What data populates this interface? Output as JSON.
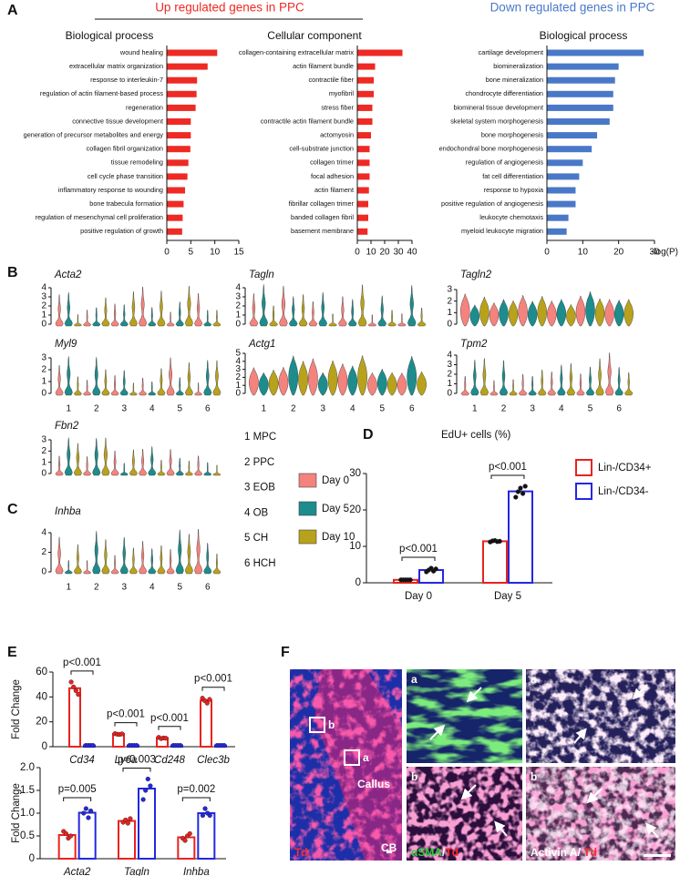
{
  "figure": {
    "panel_labels": [
      "A",
      "B",
      "C",
      "D",
      "E",
      "F"
    ],
    "up_heading": "Up regulated genes in PPC",
    "down_heading": "Down regulated genes in PPC"
  },
  "chart_data": [
    {
      "type": "hbar",
      "title": "Biological process",
      "color": "#ee2a24",
      "xlim": [
        0,
        15
      ],
      "xticks": [
        0,
        5,
        10,
        15
      ],
      "categories": [
        "wound healing",
        "extracellular matrix organization",
        "response to interleukin-7",
        "regulation of actin filament-based process",
        "regeneration",
        "connective tissue development",
        "generation of precursor metabolites and energy",
        "collagen fibril organization",
        "tissue remodeling",
        "cell cycle phase transition",
        "inflammatory response to wounding",
        "bone trabecula formation",
        "regulation of mesenchymal cell proliferation",
        "positive regulation of growth"
      ],
      "values": [
        10.5,
        8.5,
        6.3,
        6.2,
        6.0,
        5.0,
        5.0,
        4.9,
        4.5,
        4.3,
        3.8,
        3.5,
        3.3,
        3.2
      ]
    },
    {
      "type": "hbar",
      "title": "Cellular component",
      "color": "#ee2a24",
      "xlim": [
        0,
        40
      ],
      "xticks": [
        0,
        10,
        20,
        30,
        40
      ],
      "categories": [
        "collagen-containing extracellular matrix",
        "actin filament bundle",
        "contractile fiber",
        "myofibril",
        "stress fiber",
        "contractile actin filament bundle",
        "actomyosin",
        "cell-substrate junction",
        "collagen trimer",
        "focal adhesion",
        "actin filament",
        "fibrillar collagen trimer",
        "banded collagen fibril",
        "basement membrane"
      ],
      "values": [
        33,
        13,
        12,
        12,
        11,
        11,
        10,
        9,
        9,
        9,
        8.5,
        8,
        8,
        7.5
      ]
    },
    {
      "type": "hbar",
      "title": "Biological process",
      "color": "#4a78c8",
      "xlim": [
        0,
        30
      ],
      "xticks": [
        0,
        10,
        20,
        30
      ],
      "xlabel": "-log(P)",
      "categories": [
        "cartilage development",
        "biomineralization",
        "bone mineralization",
        "chondrocyte differentiation",
        "biomineral tissue development",
        "skeletal system morphogenesis",
        "bone morphogenesis",
        "endochondral bone morphogenesis",
        "regulation of angiogenesis",
        "fat cell differentiation",
        "response to hypoxia",
        "positive regulation of angiogenesis",
        "leukocyte chemotaxis",
        "myeloid leukocyte migration"
      ],
      "values": [
        27,
        20,
        19,
        18.5,
        18.5,
        17.5,
        14,
        12.5,
        10,
        9,
        8,
        8,
        6,
        5.5
      ]
    },
    {
      "type": "violin",
      "title": "Acta2",
      "ylim": [
        0,
        4
      ],
      "yticks": [
        0,
        1,
        2,
        3,
        4
      ]
    },
    {
      "type": "violin",
      "title": "Tagln",
      "ylim": [
        0,
        4
      ],
      "yticks": [
        0,
        1,
        2,
        3,
        4
      ]
    },
    {
      "type": "violin",
      "title": "Tagln2",
      "ylim": [
        0,
        3
      ],
      "yticks": [
        0,
        1,
        2,
        3
      ]
    },
    {
      "type": "violin",
      "title": "Myl9",
      "ylim": [
        0,
        3
      ],
      "yticks": [
        0,
        1,
        2,
        3
      ],
      "categories": [
        "1",
        "2",
        "3",
        "4",
        "5",
        "6"
      ]
    },
    {
      "type": "violin",
      "title": "Actg1",
      "ylim": [
        0,
        5
      ],
      "yticks": [
        0,
        1,
        2,
        3,
        4,
        5
      ],
      "categories": [
        "1",
        "2",
        "3",
        "4",
        "5",
        "6"
      ]
    },
    {
      "type": "violin",
      "title": "Tpm2",
      "ylim": [
        0,
        4
      ],
      "yticks": [
        0,
        1,
        2,
        3,
        4
      ],
      "categories": [
        "1",
        "2",
        "3",
        "4",
        "5",
        "6"
      ]
    },
    {
      "type": "violin",
      "title": "Fbn2",
      "ylim": [
        0,
        3
      ],
      "yticks": [
        0,
        1,
        2,
        3
      ]
    },
    {
      "type": "violin",
      "title": "Inhba",
      "ylim": [
        0,
        4
      ],
      "yticks": [
        0,
        2,
        4
      ],
      "categories": [
        "1",
        "2",
        "3",
        "4",
        "5",
        "6"
      ]
    },
    {
      "type": "bar",
      "title": "EdU+ cells (%)",
      "categories": [
        "Day 0",
        "Day 5"
      ],
      "ylim": [
        0,
        30
      ],
      "yticks": [
        0,
        10,
        20,
        30
      ],
      "legend": "right",
      "point_color": "#111111",
      "p_values": [
        "p<0.001",
        "p<0.001"
      ],
      "series": [
        {
          "name": "Lin-/CD34+",
          "color": "#e8231f",
          "values": [
            0.8,
            11.4
          ],
          "points": [
            [
              0.8,
              0.8,
              0.8,
              0.8,
              0.8
            ],
            [
              11.2,
              11.5,
              11.6,
              11.3,
              11.4
            ]
          ]
        },
        {
          "name": "Lin-/CD34-",
          "color": "#2327e0",
          "values": [
            3.5,
            25.1
          ],
          "points": [
            [
              3.0,
              3.5,
              4.0,
              3.2,
              3.8
            ],
            [
              23.5,
              25.0,
              26.0,
              24.5,
              26.5
            ]
          ]
        }
      ]
    },
    {
      "type": "bar",
      "ylabel": "Fold Change",
      "categories": [
        "Cd34",
        "Ly6a",
        "Cd248",
        "Clec3b"
      ],
      "ylim": [
        0,
        60
      ],
      "yticks": [
        0,
        20,
        40,
        60
      ],
      "p_values": [
        "p<0.001",
        "p<0.001",
        "p<0.001",
        "p<0.001"
      ],
      "series": [
        {
          "name": "Lin-/CD34+",
          "color": "#e8231f",
          "values": [
            47,
            10.2,
            7,
            37
          ],
          "points": [
            [
              52,
              48,
              45,
              42
            ],
            [
              10.5,
              10,
              9.8,
              10.3
            ],
            [
              7.5,
              6.5,
              7,
              6.8
            ],
            [
              39,
              37,
              35,
              38
            ]
          ]
        },
        {
          "name": "Lin-/CD34-",
          "color": "#2327e0",
          "values": [
            1,
            1,
            1,
            1
          ],
          "points": [
            [
              1,
              1,
              1,
              1
            ],
            [
              1,
              1,
              1,
              1
            ],
            [
              1,
              1,
              1,
              1
            ],
            [
              1,
              1,
              1,
              1
            ]
          ]
        }
      ]
    },
    {
      "type": "bar",
      "ylabel": "Fold Change",
      "categories": [
        "Acta2",
        "Tagln",
        "Inhba"
      ],
      "ylim": [
        0,
        2
      ],
      "yticks": [
        0,
        0.5,
        {
          "value": 1,
          "label": "1.0"
        },
        1.5,
        {
          "value": 2,
          "label": "2.0"
        }
      ],
      "p_values": [
        "p=0.005",
        "p=0.003",
        "p=0.002"
      ],
      "series": [
        {
          "name": "Lin-/CD34+",
          "color": "#e8231f",
          "values": [
            0.52,
            0.83,
            0.47
          ],
          "points": [
            [
              0.6,
              0.55,
              0.45,
              0.5
            ],
            [
              0.8,
              0.85,
              0.78,
              0.88
            ],
            [
              0.45,
              0.4,
              0.5,
              0.55
            ]
          ]
        },
        {
          "name": "Lin-/CD34-",
          "color": "#2327e0",
          "values": [
            1.01,
            1.54,
            1.0
          ],
          "points": [
            [
              1.0,
              1.1,
              0.9,
              1.05
            ],
            [
              1.3,
              1.5,
              1.75,
              1.6
            ],
            [
              0.95,
              1.1,
              1.0,
              0.95
            ]
          ]
        }
      ]
    }
  ],
  "violin_legend": {
    "clusters": [
      "1 MPC",
      "2 PPC",
      "3 EOB",
      "4 OB",
      "5 CH",
      "6 HCH"
    ],
    "days": [
      {
        "name": "Day 0",
        "color": "#f4837d"
      },
      {
        "name": "Day 5",
        "color": "#1d8c8c"
      },
      {
        "name": "Day 10",
        "color": "#b8a21c"
      }
    ]
  },
  "panel_f": {
    "overview": {
      "insets": [
        "b",
        "a"
      ],
      "regions": [
        "Callus",
        "CB"
      ],
      "stain": "Td"
    },
    "alpha_sma": {
      "insets": [
        "a",
        "b"
      ],
      "stain": "αSMA",
      "separator": "/",
      "stain2": "Td"
    },
    "activin": {
      "insets": [
        "a",
        "b"
      ],
      "stain": "Activin A",
      "separator": "/ ",
      "stain2": "Td"
    }
  }
}
